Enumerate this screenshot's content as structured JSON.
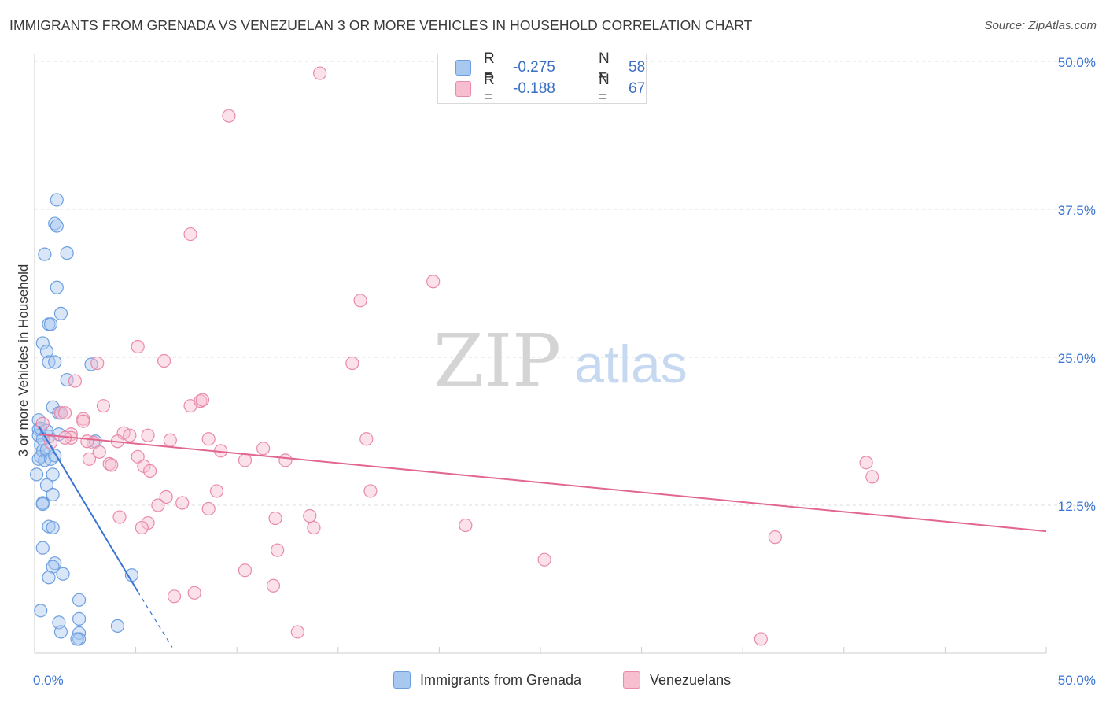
{
  "title": "IMMIGRANTS FROM GRENADA VS VENEZUELAN 3 OR MORE VEHICLES IN HOUSEHOLD CORRELATION CHART",
  "source": "Source: ZipAtlas.com",
  "watermark": {
    "zip": "ZIP",
    "atlas": "atlas"
  },
  "legend": {
    "r_label": "R =",
    "n_label": "N =",
    "series": [
      {
        "name": "Immigrants from Grenada",
        "r": "-0.275",
        "n": "58",
        "fill": "#a9c8f0",
        "stroke": "#6d9fe0",
        "line": "#3a74d4"
      },
      {
        "name": "Venezuelans",
        "r": "-0.188",
        "n": "67",
        "fill": "#f7bed0",
        "stroke": "#e98aab",
        "line": "#e2678f"
      }
    ]
  },
  "chart_data": {
    "type": "scatter",
    "title": "IMMIGRANTS FROM GRENADA VS VENEZUELAN 3 OR MORE VEHICLES IN HOUSEHOLD CORRELATION CHART",
    "xlabel": "",
    "ylabel": "3 or more Vehicles in Household",
    "xlim": [
      0,
      50
    ],
    "ylim": [
      0,
      50
    ],
    "x_tick_labels": [
      "0.0%",
      "50.0%"
    ],
    "y_ticks": [
      12.5,
      25.0,
      37.5,
      50.0
    ],
    "y_tick_labels": [
      "12.5%",
      "25.0%",
      "37.5%",
      "50.0%"
    ],
    "series": [
      {
        "name": "Immigrants from Grenada",
        "points": [
          [
            0.2,
            18.9
          ],
          [
            0.2,
            18.4
          ],
          [
            0.3,
            17.6
          ],
          [
            0.3,
            16.6
          ],
          [
            0.4,
            17.1
          ],
          [
            0.2,
            16.4
          ],
          [
            0.5,
            16.3
          ],
          [
            0.6,
            17.2
          ],
          [
            0.7,
            18.3
          ],
          [
            0.8,
            16.4
          ],
          [
            1.0,
            16.7
          ],
          [
            1.2,
            18.5
          ],
          [
            0.1,
            15.1
          ],
          [
            0.6,
            14.2
          ],
          [
            0.9,
            15.1
          ],
          [
            0.9,
            13.4
          ],
          [
            0.4,
            12.7
          ],
          [
            0.4,
            12.6
          ],
          [
            0.7,
            10.7
          ],
          [
            0.9,
            10.6
          ],
          [
            0.4,
            8.9
          ],
          [
            1.0,
            7.6
          ],
          [
            0.9,
            7.3
          ],
          [
            0.7,
            6.4
          ],
          [
            1.4,
            6.7
          ],
          [
            0.3,
            3.6
          ],
          [
            1.2,
            2.6
          ],
          [
            1.3,
            1.8
          ],
          [
            2.2,
            4.5
          ],
          [
            2.2,
            2.9
          ],
          [
            2.2,
            1.7
          ],
          [
            2.2,
            1.2
          ],
          [
            2.1,
            1.2
          ],
          [
            4.1,
            2.3
          ],
          [
            4.8,
            6.6
          ],
          [
            1.1,
            38.3
          ],
          [
            1.0,
            36.3
          ],
          [
            1.1,
            36.1
          ],
          [
            0.5,
            33.7
          ],
          [
            1.6,
            33.8
          ],
          [
            1.1,
            30.9
          ],
          [
            1.3,
            28.7
          ],
          [
            0.7,
            27.8
          ],
          [
            0.8,
            27.8
          ],
          [
            0.4,
            26.2
          ],
          [
            0.6,
            25.5
          ],
          [
            0.7,
            24.6
          ],
          [
            1.0,
            24.6
          ],
          [
            1.6,
            23.1
          ],
          [
            2.8,
            24.4
          ],
          [
            0.9,
            20.8
          ],
          [
            1.2,
            20.3
          ],
          [
            1.3,
            20.3
          ],
          [
            0.2,
            19.7
          ],
          [
            0.3,
            19.0
          ],
          [
            0.6,
            18.8
          ],
          [
            0.4,
            18.1
          ],
          [
            3.0,
            17.9
          ]
        ],
        "trend": {
          "x1": 0.2,
          "y1": 19.2,
          "x2": 5.1,
          "y2": 5.2,
          "dash_to": [
            6.8,
            0.5
          ]
        }
      },
      {
        "name": "Venezuelans",
        "points": [
          [
            14.1,
            49.0
          ],
          [
            9.6,
            45.4
          ],
          [
            7.7,
            35.4
          ],
          [
            19.7,
            31.4
          ],
          [
            16.1,
            29.8
          ],
          [
            5.1,
            25.9
          ],
          [
            6.4,
            24.7
          ],
          [
            3.1,
            24.5
          ],
          [
            15.7,
            24.5
          ],
          [
            2.0,
            23.0
          ],
          [
            3.4,
            20.9
          ],
          [
            7.7,
            20.9
          ],
          [
            8.2,
            21.3
          ],
          [
            8.3,
            21.4
          ],
          [
            0.4,
            19.4
          ],
          [
            1.3,
            20.3
          ],
          [
            1.5,
            20.3
          ],
          [
            2.4,
            19.8
          ],
          [
            2.4,
            19.6
          ],
          [
            2.9,
            17.8
          ],
          [
            4.4,
            18.6
          ],
          [
            4.7,
            18.4
          ],
          [
            1.8,
            18.5
          ],
          [
            1.8,
            18.2
          ],
          [
            4.1,
            17.9
          ],
          [
            6.7,
            18.0
          ],
          [
            8.6,
            18.1
          ],
          [
            3.2,
            17.0
          ],
          [
            5.1,
            16.6
          ],
          [
            9.2,
            17.1
          ],
          [
            10.4,
            16.3
          ],
          [
            11.3,
            17.3
          ],
          [
            12.4,
            16.3
          ],
          [
            16.4,
            18.1
          ],
          [
            2.7,
            16.4
          ],
          [
            3.7,
            16.0
          ],
          [
            3.8,
            15.9
          ],
          [
            5.4,
            15.8
          ],
          [
            5.7,
            15.4
          ],
          [
            6.5,
            13.2
          ],
          [
            9.0,
            13.7
          ],
          [
            16.6,
            13.7
          ],
          [
            6.1,
            12.5
          ],
          [
            7.3,
            12.7
          ],
          [
            8.6,
            12.2
          ],
          [
            4.2,
            11.5
          ],
          [
            5.6,
            11.0
          ],
          [
            11.9,
            11.4
          ],
          [
            13.6,
            11.6
          ],
          [
            5.3,
            10.6
          ],
          [
            13.8,
            10.6
          ],
          [
            21.3,
            10.8
          ],
          [
            12.0,
            8.7
          ],
          [
            25.2,
            7.9
          ],
          [
            36.6,
            9.8
          ],
          [
            41.1,
            16.1
          ],
          [
            41.4,
            14.9
          ],
          [
            10.4,
            7.0
          ],
          [
            11.8,
            5.7
          ],
          [
            6.9,
            4.8
          ],
          [
            7.9,
            5.1
          ],
          [
            13.0,
            1.8
          ],
          [
            35.9,
            1.2
          ],
          [
            0.8,
            17.8
          ],
          [
            1.5,
            18.2
          ],
          [
            2.6,
            17.9
          ],
          [
            5.6,
            18.4
          ]
        ],
        "trend": {
          "x1": 0.2,
          "y1": 18.5,
          "x2": 50.0,
          "y2": 10.3
        }
      }
    ]
  }
}
